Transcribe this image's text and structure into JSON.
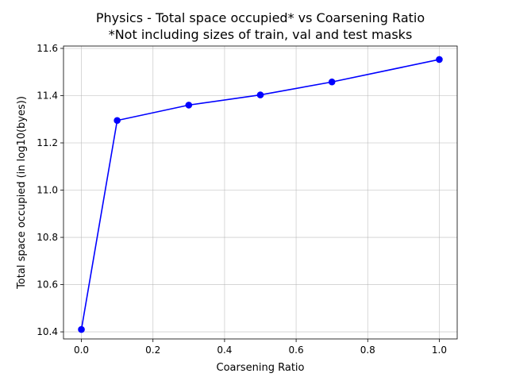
{
  "chart_data": {
    "type": "line",
    "title": "Physics - Total space occupied* vs Coarsening Ratio",
    "subtitle": "*Not including sizes of train, val and test masks",
    "xlabel": "Coarsening Ratio",
    "ylabel": "Total space occupied (in log10(byes))",
    "xlim": [
      -0.05,
      1.05
    ],
    "ylim": [
      10.37,
      11.61
    ],
    "grid": true,
    "xticks": [
      0.0,
      0.2,
      0.4,
      0.6,
      0.8,
      1.0
    ],
    "xtick_labels": [
      "0.0",
      "0.2",
      "0.4",
      "0.6",
      "0.8",
      "1.0"
    ],
    "yticks": [
      10.4,
      10.6,
      10.8,
      11.0,
      11.2,
      11.4,
      11.6
    ],
    "ytick_labels": [
      "10.4",
      "10.6",
      "10.8",
      "11.0",
      "11.2",
      "11.4",
      "11.6"
    ],
    "series": [
      {
        "color": "#0000ff",
        "marker": "circle",
        "x": [
          0.0,
          0.1,
          0.3,
          0.5,
          0.7,
          1.0
        ],
        "y": [
          10.41,
          11.295,
          11.36,
          11.403,
          11.458,
          11.553
        ]
      }
    ]
  }
}
